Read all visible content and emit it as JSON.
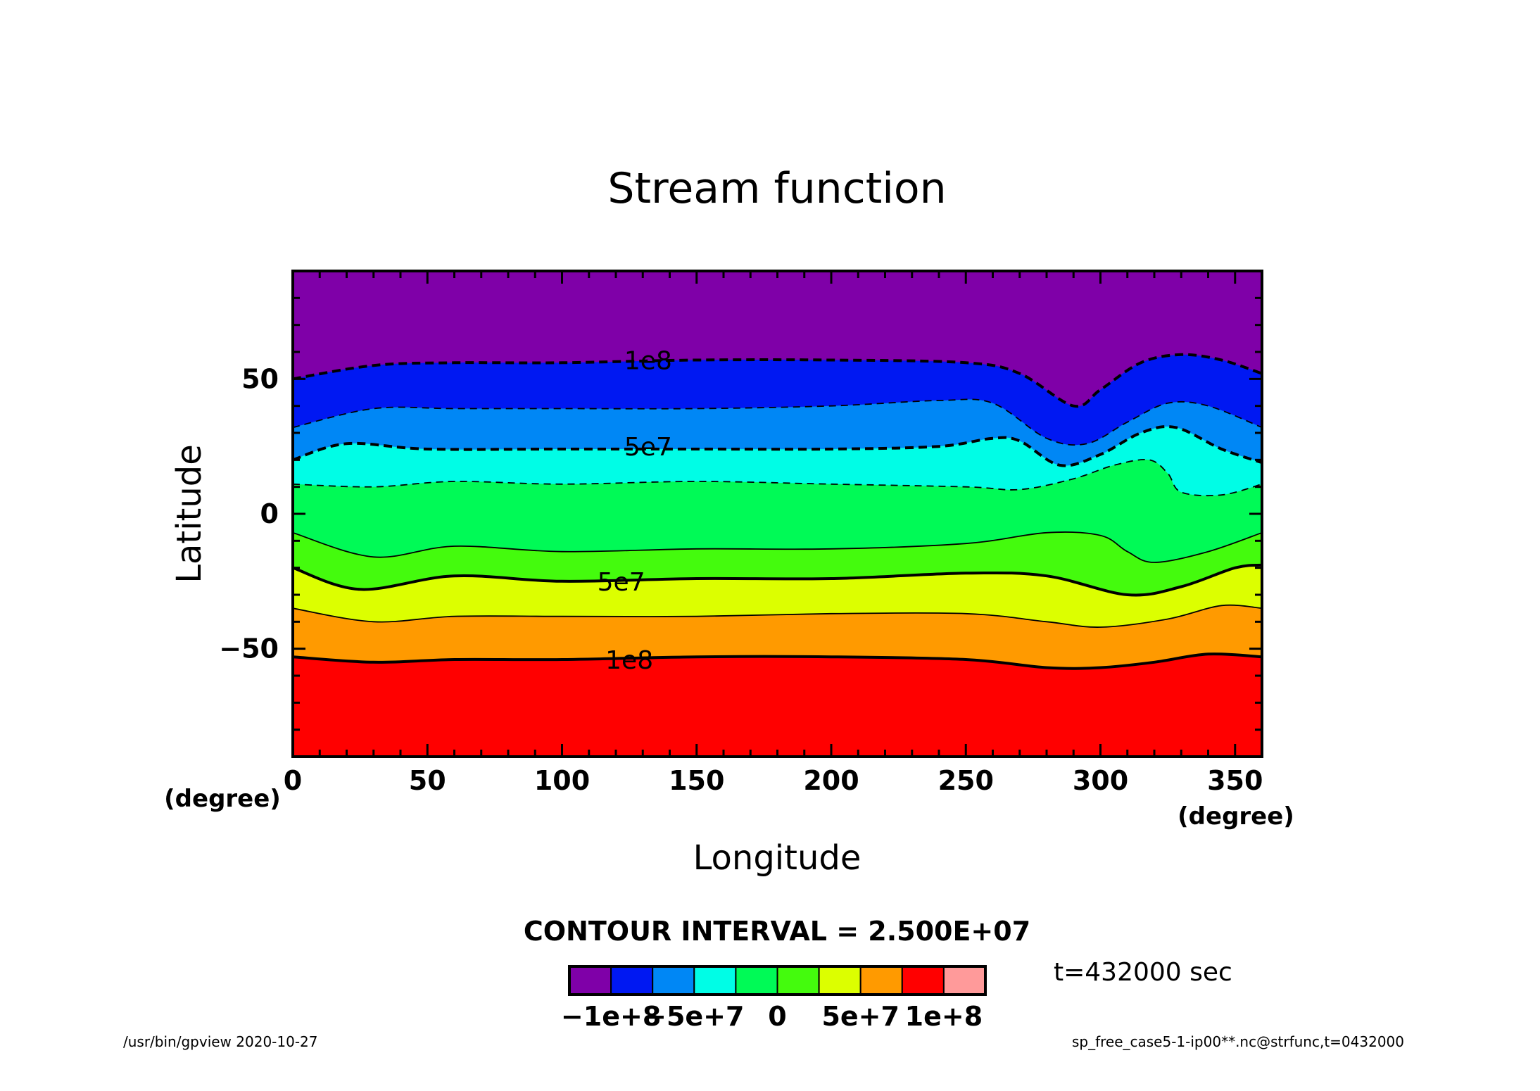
{
  "chart_data": {
    "type": "heatmap",
    "title": "Stream function",
    "xlabel": "Longitude",
    "ylabel": "Latitude",
    "xunit": "(degree)",
    "yunit": "(degree)",
    "xlim": [
      0,
      360
    ],
    "ylim": [
      -90,
      90
    ],
    "xticks": [
      "0",
      "50",
      "100",
      "150",
      "200",
      "250",
      "300",
      "350"
    ],
    "yticks": [
      "50",
      "0",
      "−50"
    ],
    "contour_interval_text": "CONTOUR INTERVAL = 2.500E+07",
    "contour_interval": 25000000,
    "levels": [
      -100000000,
      -75000000,
      -50000000,
      -25000000,
      0,
      25000000,
      50000000,
      75000000,
      100000000
    ],
    "fill_colors": [
      "#7f00a8",
      "#0018f2",
      "#0087f5",
      "#00fde6",
      "#00fa56",
      "#44fb0d",
      "#dcff00",
      "#ff9a00",
      "#ff0000",
      "#ff9a9a"
    ],
    "colorbar_labels": [
      "−1e+8",
      "−5e+7",
      "0",
      "5e+7",
      "1e+8"
    ],
    "contour_labels": [
      {
        "text": "1e8",
        "lon": 132,
        "lat": 57
      },
      {
        "text": "5e7",
        "lon": 132,
        "lat": 25
      },
      {
        "text": "5e7",
        "lon": 122,
        "lat": -25
      },
      {
        "text": "1e8",
        "lon": 125,
        "lat": -54
      }
    ],
    "contours": [
      {
        "value": -100000000,
        "style": "dashed",
        "width": "thick",
        "points": [
          [
            0,
            50
          ],
          [
            30,
            55
          ],
          [
            60,
            56
          ],
          [
            100,
            56
          ],
          [
            150,
            57
          ],
          [
            200,
            57
          ],
          [
            250,
            56
          ],
          [
            270,
            52
          ],
          [
            290,
            40
          ],
          [
            300,
            46
          ],
          [
            315,
            56
          ],
          [
            330,
            59
          ],
          [
            345,
            57
          ],
          [
            360,
            52
          ]
        ]
      },
      {
        "value": -75000000,
        "style": "dashed",
        "width": "thin",
        "points": [
          [
            0,
            32
          ],
          [
            30,
            39
          ],
          [
            60,
            39
          ],
          [
            100,
            39
          ],
          [
            150,
            39
          ],
          [
            200,
            40
          ],
          [
            240,
            42
          ],
          [
            260,
            41
          ],
          [
            280,
            28
          ],
          [
            295,
            26
          ],
          [
            310,
            34
          ],
          [
            325,
            41
          ],
          [
            340,
            40
          ],
          [
            360,
            32
          ]
        ]
      },
      {
        "value": -50000000,
        "style": "dashed",
        "width": "thick",
        "points": [
          [
            0,
            20
          ],
          [
            20,
            26
          ],
          [
            50,
            24
          ],
          [
            100,
            24
          ],
          [
            150,
            24
          ],
          [
            200,
            24
          ],
          [
            240,
            25
          ],
          [
            260,
            28
          ],
          [
            270,
            27
          ],
          [
            285,
            18
          ],
          [
            300,
            22
          ],
          [
            315,
            30
          ],
          [
            328,
            32
          ],
          [
            345,
            24
          ],
          [
            360,
            19
          ]
        ]
      },
      {
        "value": -25000000,
        "style": "dashed",
        "width": "thin",
        "points": [
          [
            0,
            11
          ],
          [
            30,
            10
          ],
          [
            60,
            12
          ],
          [
            100,
            11
          ],
          [
            150,
            12
          ],
          [
            200,
            11
          ],
          [
            250,
            10
          ],
          [
            270,
            9
          ],
          [
            290,
            13
          ],
          [
            305,
            18
          ],
          [
            318,
            20
          ],
          [
            325,
            15
          ],
          [
            330,
            8
          ],
          [
            345,
            7
          ],
          [
            360,
            11
          ]
        ]
      },
      {
        "value": 0,
        "style": "solid",
        "width": "thin",
        "points": [
          [
            0,
            -7
          ],
          [
            30,
            -16
          ],
          [
            60,
            -12
          ],
          [
            100,
            -14
          ],
          [
            150,
            -13
          ],
          [
            200,
            -13
          ],
          [
            250,
            -11
          ],
          [
            280,
            -7
          ],
          [
            300,
            -8
          ],
          [
            310,
            -14
          ],
          [
            320,
            -18
          ],
          [
            340,
            -14
          ],
          [
            360,
            -7
          ]
        ]
      },
      {
        "value": 25000000,
        "style": "solid",
        "width": "thick",
        "points": [
          [
            0,
            -20
          ],
          [
            25,
            -28
          ],
          [
            60,
            -23
          ],
          [
            100,
            -25
          ],
          [
            150,
            -24
          ],
          [
            200,
            -24
          ],
          [
            250,
            -22
          ],
          [
            280,
            -23
          ],
          [
            310,
            -30
          ],
          [
            330,
            -27
          ],
          [
            350,
            -20
          ],
          [
            360,
            -19
          ]
        ]
      },
      {
        "value": 50000000,
        "style": "solid",
        "width": "thin",
        "points": [
          [
            0,
            -35
          ],
          [
            30,
            -40
          ],
          [
            60,
            -38
          ],
          [
            100,
            -38
          ],
          [
            150,
            -38
          ],
          [
            200,
            -37
          ],
          [
            250,
            -37
          ],
          [
            280,
            -40
          ],
          [
            300,
            -42
          ],
          [
            325,
            -39
          ],
          [
            345,
            -34
          ],
          [
            360,
            -35
          ]
        ]
      },
      {
        "value": 75000000,
        "style": "solid",
        "width": "thick",
        "points": [
          [
            0,
            -53
          ],
          [
            30,
            -55
          ],
          [
            60,
            -54
          ],
          [
            100,
            -54
          ],
          [
            150,
            -53
          ],
          [
            200,
            -53
          ],
          [
            250,
            -54
          ],
          [
            280,
            -57
          ],
          [
            300,
            -57
          ],
          [
            320,
            -55
          ],
          [
            340,
            -52
          ],
          [
            360,
            -53
          ]
        ]
      }
    ],
    "time_text": "t=432000 sec",
    "footer_left": "/usr/bin/gpview   2020-10-27",
    "footer_right": "sp_free_case5-1-ip00**.nc@strfunc,t=0432000"
  }
}
